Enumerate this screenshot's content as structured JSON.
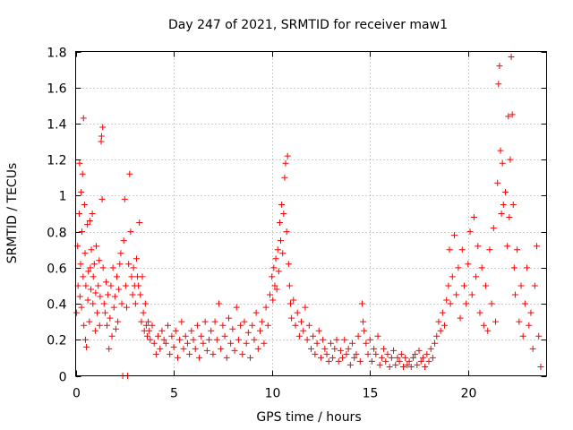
{
  "chart_data": {
    "type": "scatter",
    "title": "Day 247 of 2021, SRMTID for receiver maw1",
    "xlabel": "GPS time / hours",
    "ylabel": "SRMTID / TECUs",
    "xlim": [
      0,
      24
    ],
    "ylim": [
      0,
      1.8
    ],
    "xticks": [
      0,
      5,
      10,
      15,
      20
    ],
    "xtick_labels": [
      "0",
      "5",
      "10",
      "15",
      "20"
    ],
    "yticks": [
      0,
      0.2,
      0.4,
      0.6,
      0.8,
      1.0,
      1.2,
      1.4,
      1.6,
      1.8
    ],
    "ytick_labels": [
      "0",
      "0.2",
      "0.4",
      "0.6",
      "0.8",
      "1",
      "1.2",
      "1.4",
      "1.6",
      "1.8"
    ],
    "grid": true,
    "marker": "+",
    "color": "#ff0000",
    "series": [
      {
        "name": "SRMTID",
        "points": [
          [
            0.05,
            0.35
          ],
          [
            0.1,
            0.72
          ],
          [
            0.12,
            0.5
          ],
          [
            0.18,
            0.9
          ],
          [
            0.2,
            1.18
          ],
          [
            0.22,
            0.44
          ],
          [
            0.25,
            0.62
          ],
          [
            0.28,
            1.02
          ],
          [
            0.3,
            0.38
          ],
          [
            0.32,
            0.8
          ],
          [
            0.35,
            1.12
          ],
          [
            0.38,
            0.55
          ],
          [
            0.4,
            1.43
          ],
          [
            0.42,
            0.28
          ],
          [
            0.45,
            0.95
          ],
          [
            0.48,
            0.68
          ],
          [
            0.5,
            0.2
          ],
          [
            0.52,
            0.5
          ],
          [
            0.55,
            0.16
          ],
          [
            0.6,
            0.84
          ],
          [
            0.62,
            0.42
          ],
          [
            0.65,
            0.58
          ],
          [
            0.7,
            0.3
          ],
          [
            0.72,
            0.86
          ],
          [
            0.75,
            0.6
          ],
          [
            0.78,
            0.48
          ],
          [
            0.8,
            0.7
          ],
          [
            0.85,
            0.9
          ],
          [
            0.88,
            0.4
          ],
          [
            0.9,
            0.55
          ],
          [
            0.95,
            0.62
          ],
          [
            1.0,
            0.25
          ],
          [
            1.02,
            0.46
          ],
          [
            1.05,
            0.72
          ],
          [
            1.1,
            0.35
          ],
          [
            1.15,
            0.5
          ],
          [
            1.2,
            0.64
          ],
          [
            1.22,
            0.28
          ],
          [
            1.25,
            0.44
          ],
          [
            1.3,
            1.3
          ],
          [
            1.32,
            1.33
          ],
          [
            1.35,
            0.98
          ],
          [
            1.38,
            1.38
          ],
          [
            1.4,
            0.6
          ],
          [
            1.45,
            0.4
          ],
          [
            1.5,
            0.35
          ],
          [
            1.55,
            0.52
          ],
          [
            1.6,
            0.28
          ],
          [
            1.65,
            0.45
          ],
          [
            1.7,
            0.15
          ],
          [
            1.75,
            0.32
          ],
          [
            1.8,
            0.5
          ],
          [
            1.85,
            0.22
          ],
          [
            1.9,
            0.6
          ],
          [
            1.95,
            0.38
          ],
          [
            2.0,
            0.44
          ],
          [
            2.05,
            0.26
          ],
          [
            2.1,
            0.55
          ],
          [
            2.15,
            0.3
          ],
          [
            2.2,
            0.48
          ],
          [
            2.25,
            0.62
          ],
          [
            2.3,
            0.68
          ],
          [
            2.35,
            0.4
          ],
          [
            2.4,
            0.0
          ],
          [
            2.45,
            0.75
          ],
          [
            2.5,
            0.98
          ],
          [
            2.55,
            0.5
          ],
          [
            2.6,
            0.38
          ],
          [
            2.65,
            0.0
          ],
          [
            2.7,
            0.62
          ],
          [
            2.75,
            1.12
          ],
          [
            2.8,
            0.8
          ],
          [
            2.85,
            0.55
          ],
          [
            2.9,
            0.45
          ],
          [
            2.95,
            0.6
          ],
          [
            3.0,
            0.5
          ],
          [
            3.05,
            0.4
          ],
          [
            3.1,
            0.65
          ],
          [
            3.15,
            0.55
          ],
          [
            3.2,
            0.5
          ],
          [
            3.25,
            0.85
          ],
          [
            3.3,
            0.45
          ],
          [
            3.35,
            0.3
          ],
          [
            3.4,
            0.55
          ],
          [
            3.45,
            0.35
          ],
          [
            3.5,
            0.25
          ],
          [
            3.55,
            0.4
          ],
          [
            3.6,
            0.28
          ],
          [
            3.65,
            0.22
          ],
          [
            3.7,
            0.3
          ],
          [
            3.75,
            0.25
          ],
          [
            3.8,
            0.2
          ],
          [
            3.9,
            0.28
          ],
          [
            4.0,
            0.18
          ],
          [
            4.1,
            0.12
          ],
          [
            4.2,
            0.22
          ],
          [
            4.3,
            0.15
          ],
          [
            4.4,
            0.25
          ],
          [
            4.5,
            0.2
          ],
          [
            4.6,
            0.18
          ],
          [
            4.7,
            0.28
          ],
          [
            4.8,
            0.12
          ],
          [
            4.9,
            0.22
          ],
          [
            5.0,
            0.16
          ],
          [
            5.1,
            0.25
          ],
          [
            5.2,
            0.1
          ],
          [
            5.3,
            0.2
          ],
          [
            5.4,
            0.3
          ],
          [
            5.5,
            0.15
          ],
          [
            5.6,
            0.22
          ],
          [
            5.7,
            0.18
          ],
          [
            5.8,
            0.12
          ],
          [
            5.9,
            0.25
          ],
          [
            6.0,
            0.2
          ],
          [
            6.1,
            0.15
          ],
          [
            6.2,
            0.28
          ],
          [
            6.3,
            0.1
          ],
          [
            6.4,
            0.22
          ],
          [
            6.5,
            0.18
          ],
          [
            6.6,
            0.3
          ],
          [
            6.7,
            0.14
          ],
          [
            6.8,
            0.2
          ],
          [
            6.9,
            0.25
          ],
          [
            7.0,
            0.12
          ],
          [
            7.1,
            0.3
          ],
          [
            7.2,
            0.2
          ],
          [
            7.3,
            0.4
          ],
          [
            7.4,
            0.15
          ],
          [
            7.5,
            0.28
          ],
          [
            7.6,
            0.22
          ],
          [
            7.7,
            0.1
          ],
          [
            7.8,
            0.32
          ],
          [
            7.9,
            0.18
          ],
          [
            8.0,
            0.26
          ],
          [
            8.1,
            0.14
          ],
          [
            8.2,
            0.38
          ],
          [
            8.3,
            0.2
          ],
          [
            8.4,
            0.28
          ],
          [
            8.5,
            0.12
          ],
          [
            8.6,
            0.3
          ],
          [
            8.7,
            0.18
          ],
          [
            8.8,
            0.24
          ],
          [
            8.9,
            0.1
          ],
          [
            9.0,
            0.28
          ],
          [
            9.1,
            0.2
          ],
          [
            9.2,
            0.35
          ],
          [
            9.3,
            0.15
          ],
          [
            9.4,
            0.25
          ],
          [
            9.5,
            0.3
          ],
          [
            9.6,
            0.18
          ],
          [
            9.7,
            0.38
          ],
          [
            9.8,
            0.28
          ],
          [
            9.9,
            0.45
          ],
          [
            10.0,
            0.55
          ],
          [
            10.05,
            0.42
          ],
          [
            10.1,
            0.6
          ],
          [
            10.15,
            0.5
          ],
          [
            10.2,
            0.65
          ],
          [
            10.25,
            0.48
          ],
          [
            10.3,
            0.7
          ],
          [
            10.35,
            0.58
          ],
          [
            10.4,
            0.85
          ],
          [
            10.45,
            0.75
          ],
          [
            10.5,
            0.95
          ],
          [
            10.55,
            0.68
          ],
          [
            10.6,
            0.9
          ],
          [
            10.65,
            1.1
          ],
          [
            10.7,
            1.18
          ],
          [
            10.75,
            0.8
          ],
          [
            10.8,
            1.22
          ],
          [
            10.85,
            0.62
          ],
          [
            10.9,
            0.5
          ],
          [
            10.95,
            0.4
          ],
          [
            11.0,
            0.32
          ],
          [
            11.1,
            0.42
          ],
          [
            11.2,
            0.28
          ],
          [
            11.3,
            0.35
          ],
          [
            11.4,
            0.22
          ],
          [
            11.5,
            0.3
          ],
          [
            11.6,
            0.25
          ],
          [
            11.7,
            0.38
          ],
          [
            11.8,
            0.2
          ],
          [
            11.9,
            0.28
          ],
          [
            12.0,
            0.15
          ],
          [
            12.1,
            0.22
          ],
          [
            12.2,
            0.12
          ],
          [
            12.3,
            0.18
          ],
          [
            12.4,
            0.25
          ],
          [
            12.5,
            0.1
          ],
          [
            12.6,
            0.2
          ],
          [
            12.7,
            0.15
          ],
          [
            12.8,
            0.12
          ],
          [
            12.9,
            0.08
          ],
          [
            13.0,
            0.18
          ],
          [
            13.1,
            0.1
          ],
          [
            13.2,
            0.15
          ],
          [
            13.3,
            0.2
          ],
          [
            13.4,
            0.08
          ],
          [
            13.5,
            0.14
          ],
          [
            13.6,
            0.1
          ],
          [
            13.7,
            0.2
          ],
          [
            13.8,
            0.12
          ],
          [
            13.9,
            0.15
          ],
          [
            14.0,
            0.06
          ],
          [
            14.1,
            0.18
          ],
          [
            14.2,
            0.1
          ],
          [
            14.3,
            0.12
          ],
          [
            14.4,
            0.22
          ],
          [
            14.5,
            0.08
          ],
          [
            14.6,
            0.4
          ],
          [
            14.65,
            0.3
          ],
          [
            14.7,
            0.25
          ],
          [
            14.8,
            0.18
          ],
          [
            14.9,
            0.12
          ],
          [
            15.0,
            0.2
          ],
          [
            15.1,
            0.08
          ],
          [
            15.2,
            0.15
          ],
          [
            15.3,
            0.12
          ],
          [
            15.4,
            0.22
          ],
          [
            15.5,
            0.06
          ],
          [
            15.6,
            0.1
          ],
          [
            15.7,
            0.15
          ],
          [
            15.8,
            0.08
          ],
          [
            15.9,
            0.12
          ],
          [
            16.0,
            0.05
          ],
          [
            16.1,
            0.1
          ],
          [
            16.2,
            0.14
          ],
          [
            16.3,
            0.06
          ],
          [
            16.4,
            0.1
          ],
          [
            16.5,
            0.08
          ],
          [
            16.6,
            0.12
          ],
          [
            16.7,
            0.05
          ],
          [
            16.8,
            0.1
          ],
          [
            16.9,
            0.06
          ],
          [
            17.0,
            0.08
          ],
          [
            17.1,
            0.05
          ],
          [
            17.2,
            0.1
          ],
          [
            17.3,
            0.12
          ],
          [
            17.4,
            0.06
          ],
          [
            17.5,
            0.14
          ],
          [
            17.6,
            0.08
          ],
          [
            17.7,
            0.1
          ],
          [
            17.8,
            0.05
          ],
          [
            17.9,
            0.12
          ],
          [
            18.0,
            0.08
          ],
          [
            18.1,
            0.15
          ],
          [
            18.2,
            0.1
          ],
          [
            18.3,
            0.18
          ],
          [
            18.4,
            0.22
          ],
          [
            18.5,
            0.3
          ],
          [
            18.6,
            0.25
          ],
          [
            18.7,
            0.35
          ],
          [
            18.8,
            0.28
          ],
          [
            18.9,
            0.42
          ],
          [
            19.0,
            0.5
          ],
          [
            19.05,
            0.7
          ],
          [
            19.1,
            0.4
          ],
          [
            19.2,
            0.55
          ],
          [
            19.3,
            0.78
          ],
          [
            19.4,
            0.45
          ],
          [
            19.5,
            0.6
          ],
          [
            19.6,
            0.32
          ],
          [
            19.7,
            0.7
          ],
          [
            19.8,
            0.5
          ],
          [
            19.9,
            0.4
          ],
          [
            20.0,
            0.62
          ],
          [
            20.1,
            0.8
          ],
          [
            20.2,
            0.45
          ],
          [
            20.3,
            0.88
          ],
          [
            20.4,
            0.55
          ],
          [
            20.5,
            0.72
          ],
          [
            20.6,
            0.35
          ],
          [
            20.7,
            0.6
          ],
          [
            20.8,
            0.28
          ],
          [
            20.9,
            0.5
          ],
          [
            21.0,
            0.25
          ],
          [
            21.1,
            0.7
          ],
          [
            21.2,
            0.4
          ],
          [
            21.3,
            0.82
          ],
          [
            21.4,
            0.3
          ],
          [
            21.5,
            1.07
          ],
          [
            21.55,
            1.62
          ],
          [
            21.6,
            1.72
          ],
          [
            21.65,
            1.25
          ],
          [
            21.7,
            0.9
          ],
          [
            21.75,
            1.18
          ],
          [
            21.8,
            0.95
          ],
          [
            21.9,
            1.02
          ],
          [
            22.0,
            0.72
          ],
          [
            22.05,
            1.44
          ],
          [
            22.1,
            0.88
          ],
          [
            22.15,
            1.2
          ],
          [
            22.2,
            1.77
          ],
          [
            22.25,
            1.45
          ],
          [
            22.3,
            0.95
          ],
          [
            22.35,
            0.6
          ],
          [
            22.4,
            0.45
          ],
          [
            22.5,
            0.7
          ],
          [
            22.6,
            0.3
          ],
          [
            22.7,
            0.5
          ],
          [
            22.8,
            0.22
          ],
          [
            22.9,
            0.4
          ],
          [
            23.0,
            0.6
          ],
          [
            23.1,
            0.28
          ],
          [
            23.2,
            0.35
          ],
          [
            23.3,
            0.15
          ],
          [
            23.4,
            0.5
          ],
          [
            23.5,
            0.72
          ],
          [
            23.6,
            0.22
          ],
          [
            23.7,
            0.05
          ]
        ]
      }
    ]
  }
}
